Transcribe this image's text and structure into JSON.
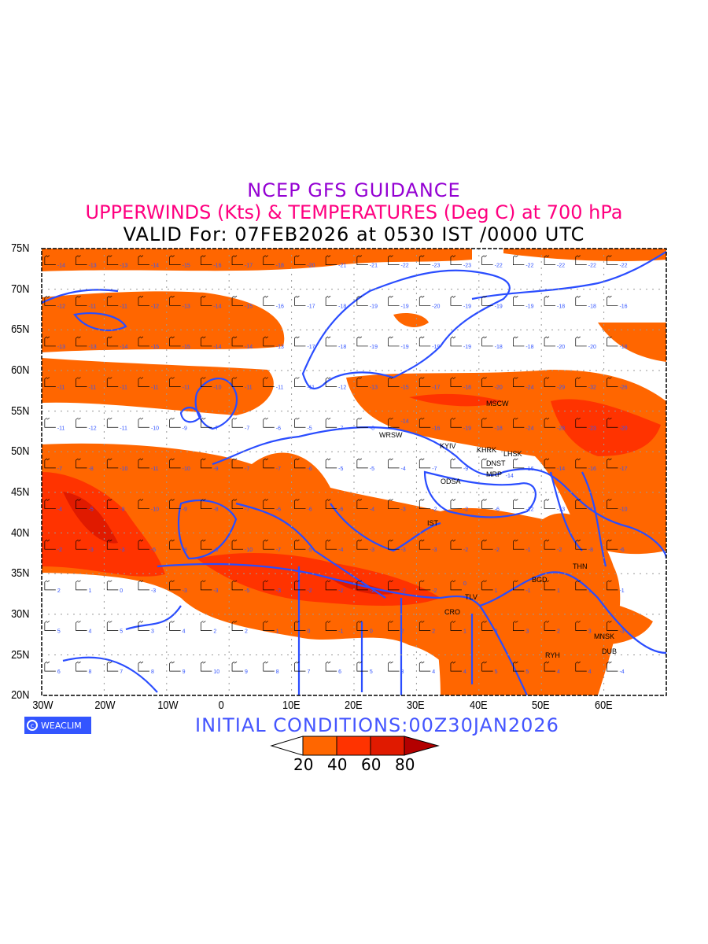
{
  "header": {
    "title": "NCEP GFS GUIDANCE",
    "subtitle": "UPPERWINDS (Kts) & TEMPERATURES (Deg C) at 700 hPa",
    "valid": "VALID For: 07FEB2026 at 0530 IST /0000 UTC"
  },
  "axes": {
    "lat_labels": [
      "75N",
      "70N",
      "65N",
      "60N",
      "55N",
      "50N",
      "45N",
      "40N",
      "35N",
      "30N",
      "25N",
      "20N"
    ],
    "lon_labels": [
      "30W",
      "20W",
      "10W",
      "0",
      "10E",
      "20E",
      "30E",
      "40E",
      "50E",
      "60E"
    ]
  },
  "cities": [
    "MSCW",
    "WRSW",
    "KYIV",
    "KHRK",
    "LHSK",
    "DNST",
    "MRP",
    "ODSA",
    "IST",
    "TLV",
    "CRO",
    "BGD",
    "THN",
    "MNSK",
    "DUB",
    "RYH"
  ],
  "temperature_rows": [
    {
      "lat": 73,
      "values": [
        "-14",
        "-13",
        "-13",
        "-14",
        "-15",
        "-16",
        "-17",
        "-18",
        "-20",
        "-21",
        "-21",
        "-22",
        "-23",
        "-23",
        "-22",
        "-22",
        "-22",
        "-22",
        "-22"
      ]
    },
    {
      "lat": 68,
      "values": [
        "-12",
        "-11",
        "-11",
        "-12",
        "-13",
        "-14",
        "-15",
        "-16",
        "-17",
        "-18",
        "-19",
        "-19",
        "-20",
        "-19",
        "-19",
        "-19",
        "-18",
        "-18",
        "-16"
      ]
    },
    {
      "lat": 63,
      "values": [
        "-13",
        "-13",
        "-14",
        "-15",
        "-15",
        "-14",
        "-14",
        "-13",
        "-17",
        "-18",
        "-19",
        "-19",
        "-19",
        "-19",
        "-18",
        "-18",
        "-20",
        "-20",
        "-18"
      ]
    },
    {
      "lat": 58,
      "values": [
        "-11",
        "-11",
        "-11",
        "-11",
        "-11",
        "-10",
        "-11",
        "-11",
        "-11",
        "-12",
        "-13",
        "-15",
        "-17",
        "-18",
        "-20",
        "-24",
        "-29",
        "-32",
        "-26"
      ]
    },
    {
      "lat": 53,
      "values": [
        "-11",
        "-12",
        "-11",
        "-10",
        "-9",
        "-7",
        "-7",
        "-6",
        "-5",
        "-7",
        "-8",
        "-14",
        "-16",
        "-19",
        "-18",
        "-24",
        "-28",
        "-23",
        "-20"
      ]
    },
    {
      "lat": 48,
      "values": [
        "-7",
        "-8",
        "-10",
        "-11",
        "-10",
        "-9",
        "-7",
        "-7",
        "-6",
        "-5",
        "-5",
        "-4",
        "-7",
        "-9",
        "-14",
        "-16",
        "-14",
        "-16",
        "-17"
      ]
    },
    {
      "lat": 43,
      "values": [
        "-4",
        "-5",
        "-9",
        "-10",
        "-9",
        "-8",
        "-7",
        "-6",
        "-6",
        "-6",
        "-4",
        "-3",
        "-2",
        "-2",
        "-6",
        "-12",
        "-13",
        "-12",
        "-10"
      ]
    },
    {
      "lat": 38,
      "values": [
        "-2",
        "-3",
        "-3",
        "-5",
        "-8",
        "-9",
        "-10",
        "-7",
        "-5",
        "-4",
        "-3",
        "-3",
        "-3",
        "-2",
        "-2",
        "-1",
        "-2",
        "-8",
        "-6"
      ]
    },
    {
      "lat": 33,
      "values": [
        "2",
        "1",
        "0",
        "-3",
        "-3",
        "-3",
        "-5",
        "-3",
        "-2",
        "-2",
        "-2",
        "-2",
        "-2",
        "0",
        "1",
        "-1",
        "1",
        "1",
        "-1"
      ]
    },
    {
      "lat": 28,
      "values": [
        "5",
        "4",
        "5",
        "3",
        "4",
        "2",
        "2",
        "1",
        "0",
        "-1",
        "0",
        "2",
        "2",
        "1",
        "3",
        "3",
        "2",
        "3",
        "-3"
      ]
    },
    {
      "lat": 23,
      "values": [
        "6",
        "8",
        "7",
        "8",
        "9",
        "10",
        "9",
        "8",
        "7",
        "6",
        "5",
        "3",
        "4",
        "4",
        "5",
        "5",
        "4",
        "4",
        "-4"
      ]
    }
  ],
  "footer": {
    "logo": "WEACLIM",
    "initial_conditions": "INITIAL  CONDITIONS:00Z30JAN2026"
  },
  "legend": {
    "labels": [
      "20",
      "40",
      "60",
      "80"
    ],
    "colors": [
      "#ffffff",
      "#ff6600",
      "#ff3300",
      "#e01a00",
      "#b30000"
    ]
  },
  "colors": {
    "coast": "#2a4dff",
    "label_temp": "#3355ff"
  }
}
